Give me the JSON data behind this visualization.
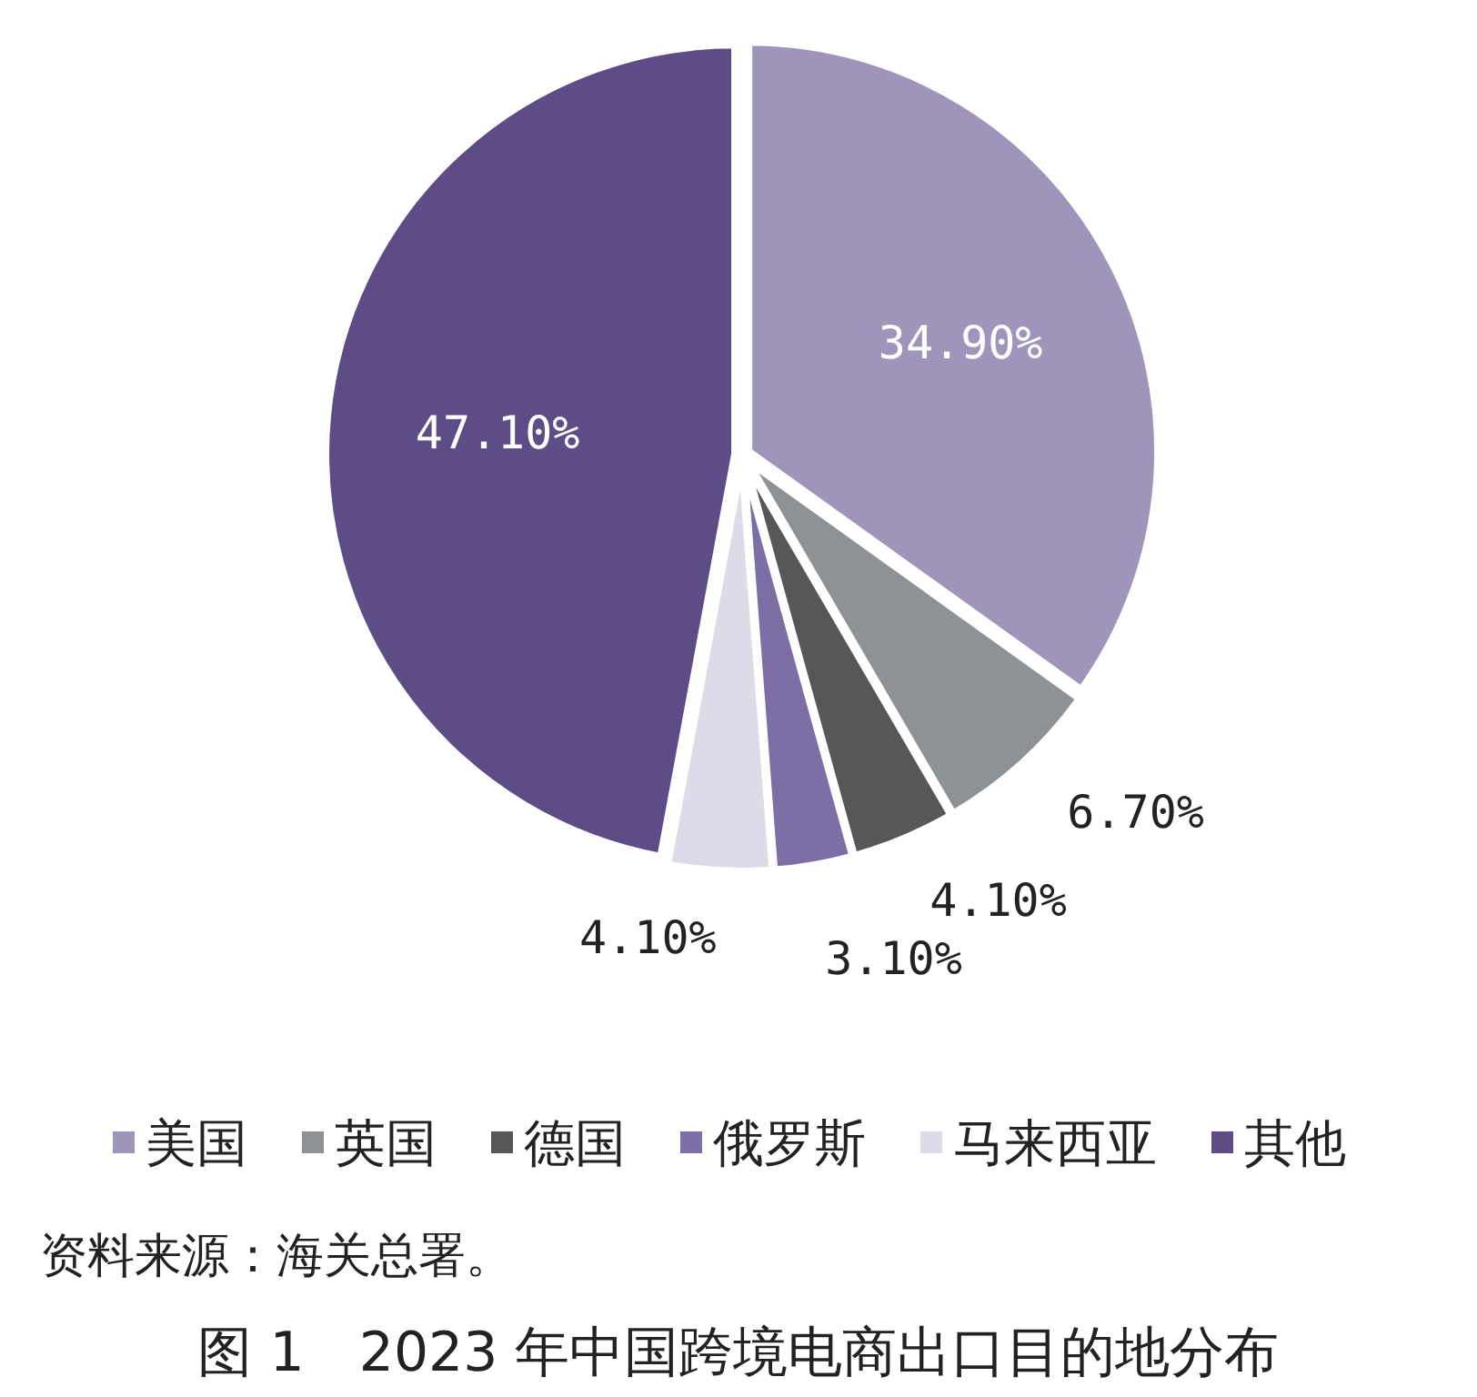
{
  "chart_data": {
    "type": "pie",
    "title": "图 1　2023 年中国跨境电商出口目的地分布",
    "categories": [
      "美国",
      "英国",
      "德国",
      "俄罗斯",
      "马来西亚",
      "其他"
    ],
    "values": [
      34.9,
      6.7,
      4.1,
      3.1,
      4.1,
      47.1
    ],
    "value_labels": [
      "34.90%",
      "6.70%",
      "4.10%",
      "3.10%",
      "4.10%",
      "47.10%"
    ],
    "colors": [
      "#9f95ba",
      "#8f9294",
      "#555759",
      "#7d6ea6",
      "#dedbe8",
      "#5e4c87"
    ],
    "legend": "bottom",
    "annotations": [
      "资料来源：海关总署。"
    ]
  }
}
